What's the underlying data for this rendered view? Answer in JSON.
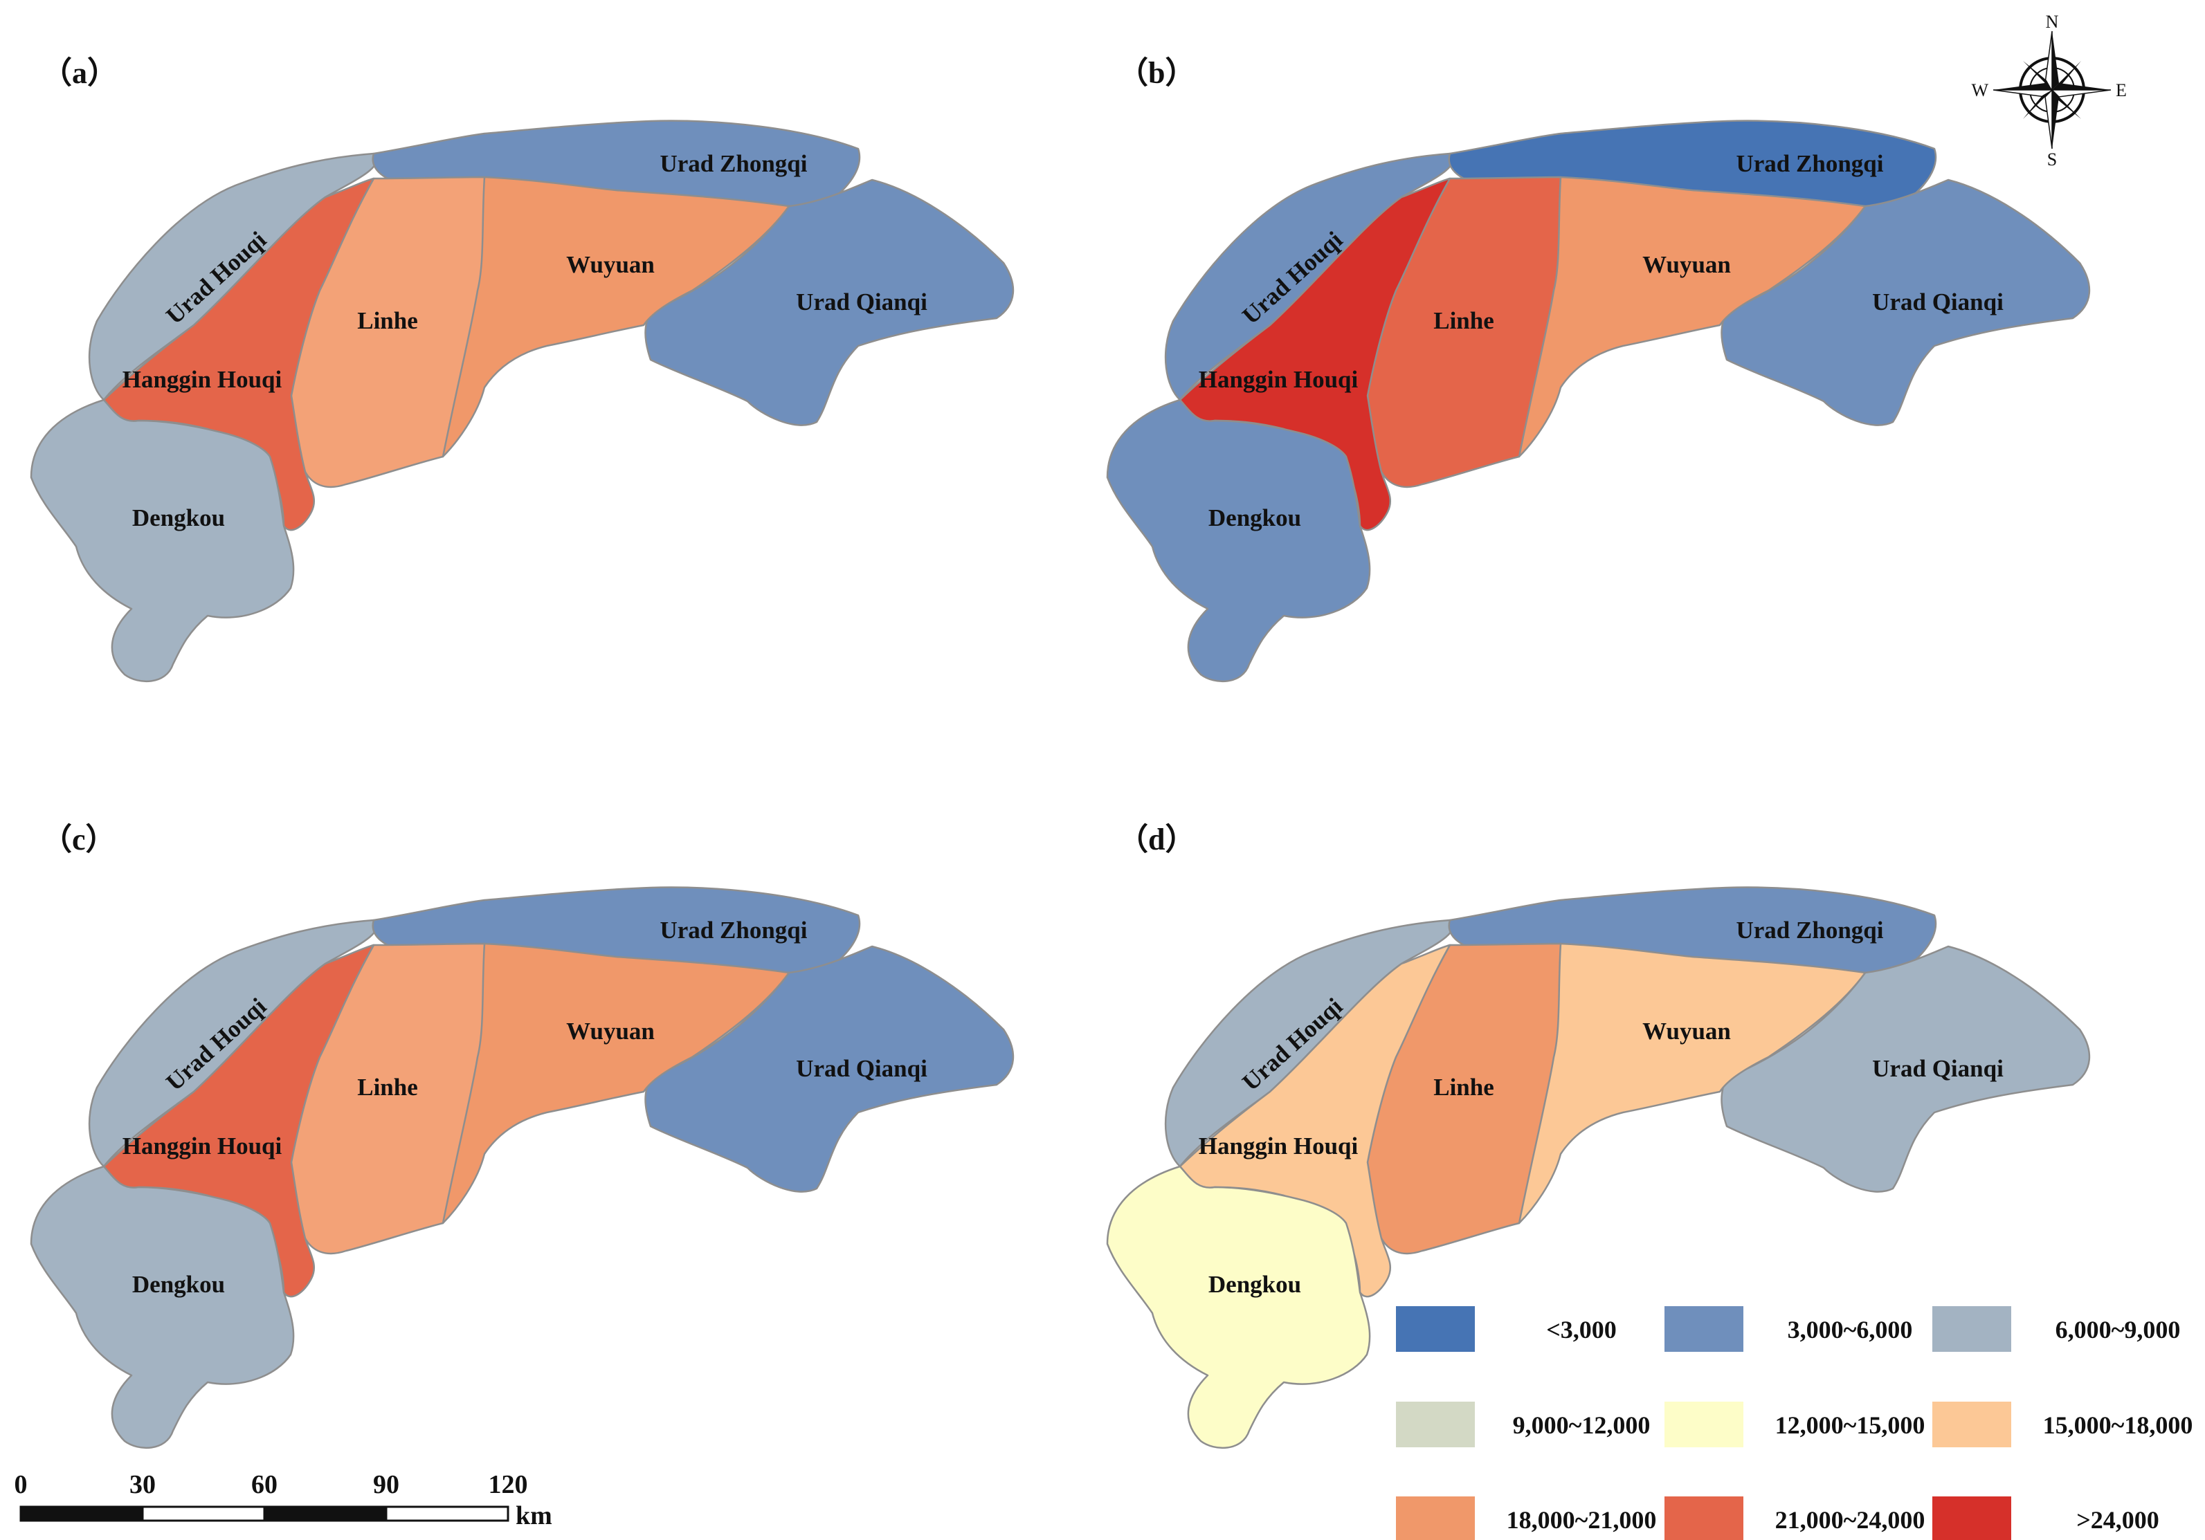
{
  "panels": [
    {
      "label": "（a）",
      "fills": {
        "urad_houqi": "#a3b3c2",
        "urad_zhongqi": "#6f8fbc",
        "urad_qianqi": "#6f8fbc",
        "wuyuan": "#f0986a",
        "linhe": "#f3a277",
        "hanggin_houqi": "#e4654a",
        "dengkou": "#a3b3c2"
      },
      "classes": {
        "urad_houqi": "6,000~9,000",
        "urad_zhongqi": "3,000~6,000",
        "urad_qianqi": "3,000~6,000",
        "wuyuan": "18,000~21,000",
        "linhe": "18,000~21,000",
        "hanggin_houqi": "21,000~24,000",
        "dengkou": "6,000~9,000"
      }
    },
    {
      "label": "（b）",
      "fills": {
        "urad_houqi": "#6f8fbc",
        "urad_zhongqi": "#4674b4",
        "urad_qianqi": "#6f8fbc",
        "wuyuan": "#f0986a",
        "linhe": "#e4654a",
        "hanggin_houqi": "#d6302a",
        "dengkou": "#6f8fbc"
      },
      "classes": {
        "urad_houqi": "3,000~6,000",
        "urad_zhongqi": "<3,000",
        "urad_qianqi": "3,000~6,000",
        "wuyuan": "18,000~21,000",
        "linhe": "21,000~24,000",
        "hanggin_houqi": ">24,000",
        "dengkou": "3,000~6,000"
      }
    },
    {
      "label": "（c）",
      "fills": {
        "urad_houqi": "#a3b3c2",
        "urad_zhongqi": "#6f8fbc",
        "urad_qianqi": "#6f8fbc",
        "wuyuan": "#f0986a",
        "linhe": "#f3a277",
        "hanggin_houqi": "#e4654a",
        "dengkou": "#a3b3c2"
      },
      "classes": {
        "urad_houqi": "6,000~9,000",
        "urad_zhongqi": "3,000~6,000",
        "urad_qianqi": "3,000~6,000",
        "wuyuan": "18,000~21,000",
        "linhe": "18,000~21,000",
        "hanggin_houqi": "21,000~24,000",
        "dengkou": "6,000~9,000"
      }
    },
    {
      "label": "（d）",
      "fills": {
        "urad_houqi": "#a3b3c2",
        "urad_zhongqi": "#6f8fbc",
        "urad_qianqi": "#a3b3c2",
        "wuyuan": "#fcc896",
        "linhe": "#f0986a",
        "hanggin_houqi": "#fcc896",
        "dengkou": "#fdfdc8"
      },
      "classes": {
        "urad_houqi": "6,000~9,000",
        "urad_zhongqi": "3,000~6,000",
        "urad_qianqi": "6,000~9,000",
        "wuyuan": "15,000~18,000",
        "linhe": "18,000~21,000",
        "hanggin_houqi": "15,000~18,000",
        "dengkou": "12,000~15,000"
      }
    }
  ],
  "region_names": {
    "urad_houqi": "Urad Houqi",
    "urad_zhongqi": "Urad Zhongqi",
    "urad_qianqi": "Urad Qianqi",
    "wuyuan": "Wuyuan",
    "linhe": "Linhe",
    "hanggin_houqi": "Hanggin Houqi",
    "dengkou": "Dengkou"
  },
  "legend": [
    {
      "label": "<3,000",
      "color": "#4674b4"
    },
    {
      "label": "3,000~6,000",
      "color": "#6f8fbc"
    },
    {
      "label": "6,000~9,000",
      "color": "#a3b3c2"
    },
    {
      "label": "9,000~12,000",
      "color": "#d3d9c5"
    },
    {
      "label": "12,000~15,000",
      "color": "#fdfdc8"
    },
    {
      "label": "15,000~18,000",
      "color": "#fcc896"
    },
    {
      "label": "18,000~21,000",
      "color": "#f0986a"
    },
    {
      "label": "21,000~24,000",
      "color": "#e4654a"
    },
    {
      "label": ">24,000",
      "color": "#d6302a"
    }
  ],
  "compass": {
    "n": "N",
    "s": "S",
    "e": "E",
    "w": "W"
  },
  "scale_bar": {
    "ticks": [
      "0",
      "30",
      "60",
      "90",
      "120"
    ],
    "unit": "km"
  }
}
